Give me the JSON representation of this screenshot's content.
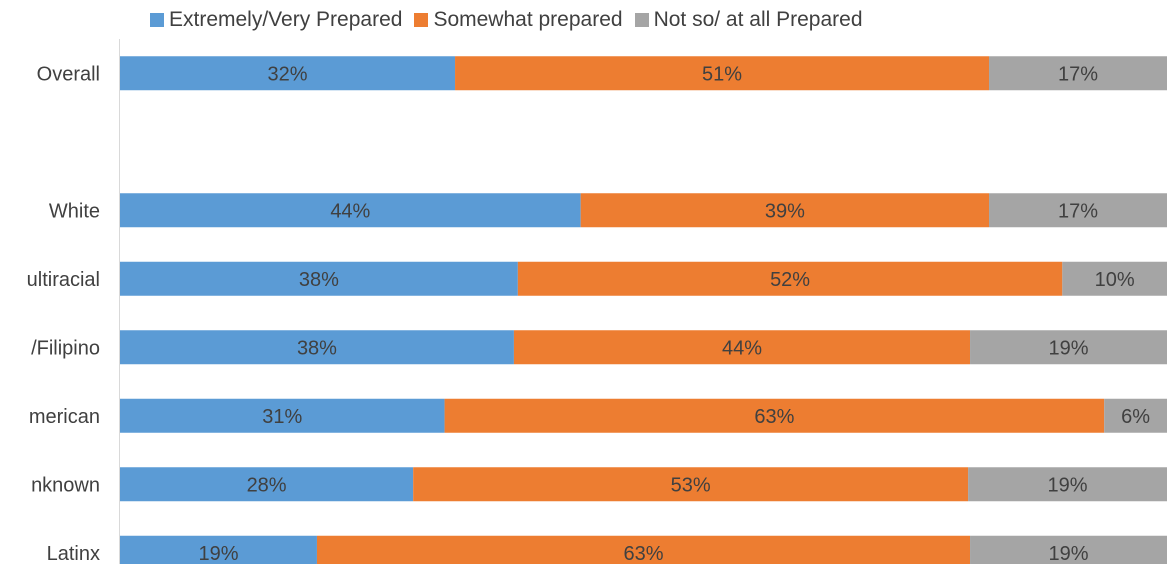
{
  "chart_data": {
    "type": "bar",
    "orientation": "horizontal",
    "stacked": "percent",
    "title": "",
    "xlabel": "",
    "ylabel": "",
    "legend_position": "top",
    "categories": [
      "Overall",
      "",
      "White",
      "ultiracial",
      "/Filipino",
      "merican",
      "nknown",
      "Latinx"
    ],
    "series": [
      {
        "name": "Extremely/Very Prepared",
        "color": "#5b9bd5",
        "values": [
          32,
          null,
          44,
          38,
          38,
          31,
          28,
          19
        ],
        "labels": [
          "32%",
          "",
          "44%",
          "38%",
          "38%",
          "31%",
          "28%",
          "19%"
        ]
      },
      {
        "name": "Somewhat prepared",
        "color": "#ed7d31",
        "values": [
          51,
          null,
          39,
          52,
          44,
          63,
          53,
          63
        ],
        "labels": [
          "51%",
          "",
          "39%",
          "52%",
          "44%",
          "63%",
          "53%",
          "63%"
        ]
      },
      {
        "name": "Not so/ at all Prepared",
        "color": "#a5a5a5",
        "values": [
          17,
          null,
          17,
          10,
          19,
          6,
          19,
          19
        ],
        "labels": [
          "17%",
          "",
          "17%",
          "10%",
          "19%",
          "6%",
          "19%",
          "19%"
        ]
      }
    ]
  }
}
